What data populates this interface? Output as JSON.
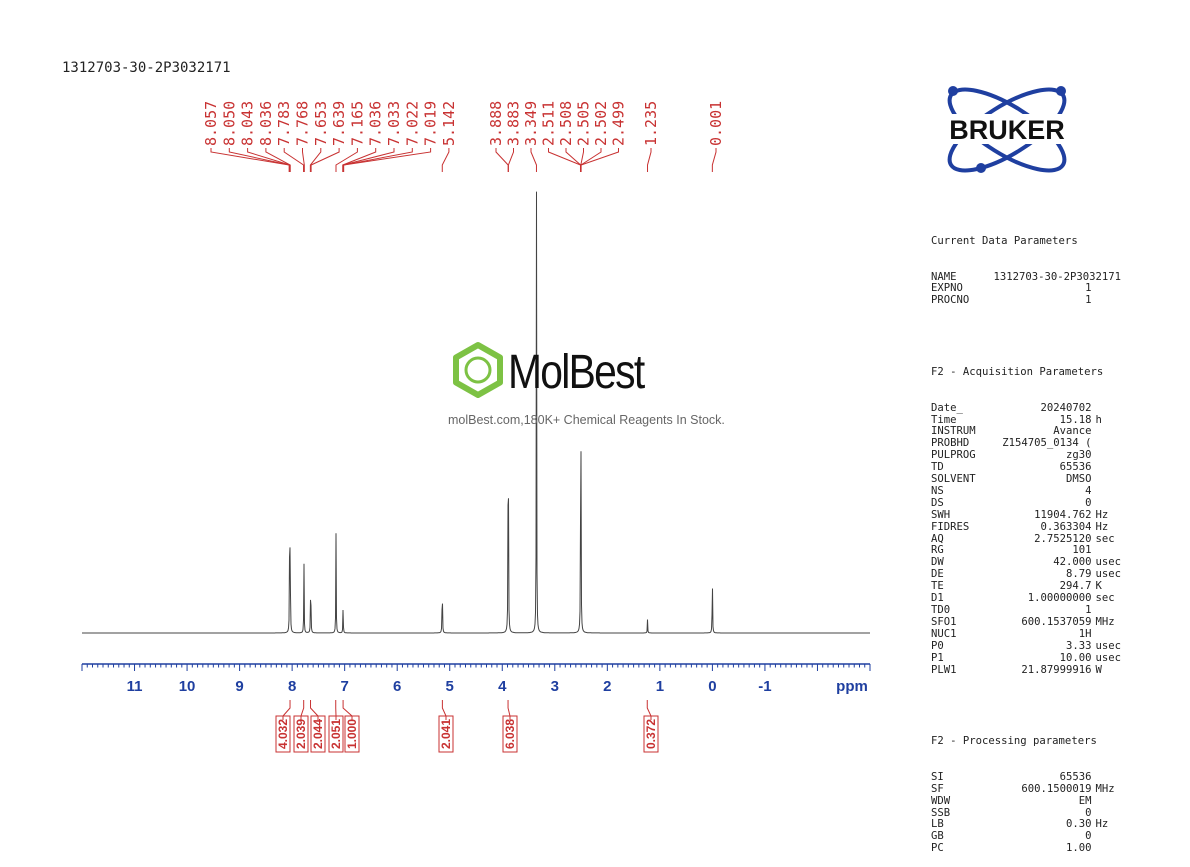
{
  "header": {
    "sample_title": "1312703-30-2P3032171"
  },
  "logo": {
    "text": "BRUKER",
    "color": "#1f3fa0"
  },
  "watermark": {
    "brand": "MolBest",
    "tagline": "molBest.com,180K+ Chemical Reagents In Stock.",
    "hex_color": "#7dc244"
  },
  "colors": {
    "axis": "#1f3fa0",
    "peak_labels": "#c83232",
    "spectrum": "#444444"
  },
  "chart_data": {
    "type": "line",
    "title": "",
    "xlabel": "ppm",
    "ylabel": "",
    "xlim": [
      12.0,
      -3.0
    ],
    "x_reversed": true,
    "xticks": [
      11,
      10,
      9,
      8,
      7,
      6,
      5,
      4,
      3,
      2,
      1,
      0,
      -1
    ],
    "tick_labels": [
      "11",
      "10",
      "9",
      "8",
      "7",
      "6",
      "5",
      "4",
      "3",
      "2",
      "1",
      "0",
      "-1"
    ],
    "peaks": [
      {
        "ppm": 8.047,
        "height": 0.24
      },
      {
        "ppm": 8.037,
        "height": 0.22
      },
      {
        "ppm": 7.775,
        "height": 0.16
      },
      {
        "ppm": 7.646,
        "height": 0.16
      },
      {
        "ppm": 7.165,
        "height": 0.22
      },
      {
        "ppm": 7.03,
        "height": 0.06
      },
      {
        "ppm": 5.142,
        "height": 0.14
      },
      {
        "ppm": 3.886,
        "height": 0.7
      },
      {
        "ppm": 3.349,
        "height": 1.0
      },
      {
        "ppm": 2.505,
        "height": 0.75
      },
      {
        "ppm": 1.235,
        "height": 0.03
      },
      {
        "ppm": 0.001,
        "height": 0.15
      }
    ],
    "peak_label_groups": [
      {
        "labels": [
          "8.057",
          "8.050",
          "8.043",
          "8.036",
          "7.783",
          "7.768",
          "7.653",
          "7.639",
          "7.165",
          "7.036",
          "7.033",
          "7.022",
          "7.019",
          "5.142"
        ]
      },
      {
        "labels": [
          "3.888",
          "3.883",
          "3.349",
          "2.511",
          "2.508",
          "2.505",
          "2.502",
          "2.499",
          "1.235",
          "0.001"
        ]
      }
    ],
    "peak_label_ppm": [
      8.057,
      8.05,
      8.043,
      8.036,
      7.783,
      7.768,
      7.653,
      7.639,
      7.165,
      7.036,
      7.033,
      7.022,
      7.019,
      5.142,
      3.888,
      3.883,
      3.349,
      2.511,
      2.508,
      2.505,
      2.502,
      2.499,
      1.235,
      0.001
    ],
    "integrals": [
      {
        "value": "4.032",
        "ppm": 8.04
      },
      {
        "value": "2.039",
        "ppm": 7.78
      },
      {
        "value": "2.044",
        "ppm": 7.65
      },
      {
        "value": "2.051",
        "ppm": 7.17
      },
      {
        "value": "1.000",
        "ppm": 7.03
      },
      {
        "value": "2.041",
        "ppm": 5.14
      },
      {
        "value": "6.038",
        "ppm": 3.89
      },
      {
        "value": "0.372",
        "ppm": 1.24
      }
    ]
  },
  "params": {
    "current_header": "Current Data Parameters",
    "current": [
      {
        "key": "NAME",
        "value": "1312703-30-2P3032171",
        "unit": ""
      },
      {
        "key": "EXPNO",
        "value": "1",
        "unit": ""
      },
      {
        "key": "PROCNO",
        "value": "1",
        "unit": ""
      }
    ],
    "acq_header": "F2 - Acquisition Parameters",
    "acq": [
      {
        "key": "Date_",
        "value": "20240702",
        "unit": ""
      },
      {
        "key": "Time",
        "value": "15.18",
        "unit": "h"
      },
      {
        "key": "INSTRUM",
        "value": "Avance",
        "unit": ""
      },
      {
        "key": "PROBHD",
        "value": "Z154705_0134 (",
        "unit": ""
      },
      {
        "key": "PULPROG",
        "value": "zg30",
        "unit": ""
      },
      {
        "key": "TD",
        "value": "65536",
        "unit": ""
      },
      {
        "key": "SOLVENT",
        "value": "DMSO",
        "unit": ""
      },
      {
        "key": "NS",
        "value": "4",
        "unit": ""
      },
      {
        "key": "DS",
        "value": "0",
        "unit": ""
      },
      {
        "key": "SWH",
        "value": "11904.762",
        "unit": "Hz"
      },
      {
        "key": "FIDRES",
        "value": "0.363304",
        "unit": "Hz"
      },
      {
        "key": "AQ",
        "value": "2.7525120",
        "unit": "sec"
      },
      {
        "key": "RG",
        "value": "101",
        "unit": ""
      },
      {
        "key": "DW",
        "value": "42.000",
        "unit": "usec"
      },
      {
        "key": "DE",
        "value": "8.79",
        "unit": "usec"
      },
      {
        "key": "TE",
        "value": "294.7",
        "unit": "K"
      },
      {
        "key": "D1",
        "value": "1.00000000",
        "unit": "sec"
      },
      {
        "key": "TD0",
        "value": "1",
        "unit": ""
      },
      {
        "key": "SFO1",
        "value": "600.1537059",
        "unit": "MHz"
      },
      {
        "key": "NUC1",
        "value": "1H",
        "unit": ""
      },
      {
        "key": "P0",
        "value": "3.33",
        "unit": "usec"
      },
      {
        "key": "P1",
        "value": "10.00",
        "unit": "usec"
      },
      {
        "key": "PLW1",
        "value": "21.87999916",
        "unit": "W"
      }
    ],
    "proc_header": "F2 - Processing parameters",
    "proc": [
      {
        "key": "SI",
        "value": "65536",
        "unit": ""
      },
      {
        "key": "SF",
        "value": "600.1500019",
        "unit": "MHz"
      },
      {
        "key": "WDW",
        "value": "EM",
        "unit": ""
      },
      {
        "key": "SSB",
        "value": "0",
        "unit": ""
      },
      {
        "key": "LB",
        "value": "0.30",
        "unit": "Hz"
      },
      {
        "key": "GB",
        "value": "0",
        "unit": ""
      },
      {
        "key": "PC",
        "value": "1.00",
        "unit": ""
      }
    ]
  }
}
